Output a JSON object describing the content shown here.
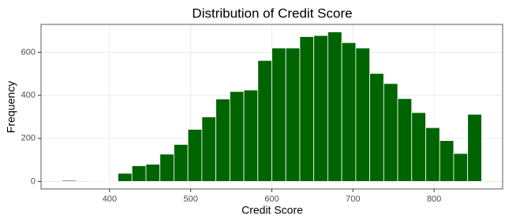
{
  "chart_data": {
    "type": "histogram",
    "title": "Distribution of Credit Score",
    "x_label": "Credit Score",
    "y_label": "Frequency",
    "bins": [
      341.38,
      358.62,
      375.86,
      393.1,
      410.34,
      427.59,
      444.83,
      462.07,
      479.31,
      496.55,
      513.79,
      531.03,
      548.28,
      565.52,
      582.76,
      600.0,
      617.24,
      634.48,
      651.72,
      668.97,
      686.21,
      703.45,
      720.69,
      737.93,
      755.17,
      772.41,
      789.66,
      806.9,
      824.14,
      841.38,
      858.62
    ],
    "counts": [
      5,
      0,
      3,
      3,
      38,
      73,
      80,
      127,
      172,
      242,
      300,
      383,
      418,
      425,
      562,
      620,
      620,
      673,
      678,
      695,
      645,
      620,
      502,
      455,
      385,
      320,
      250,
      190,
      130,
      312
    ],
    "color": "#006400",
    "xlim": [
      315.5,
      884.5
    ],
    "xticks": [
      400,
      500,
      600,
      700,
      800
    ],
    "ylim": [
      -34.75,
      729.75
    ],
    "yticks": [
      0,
      200,
      400,
      600
    ],
    "grid": true
  }
}
